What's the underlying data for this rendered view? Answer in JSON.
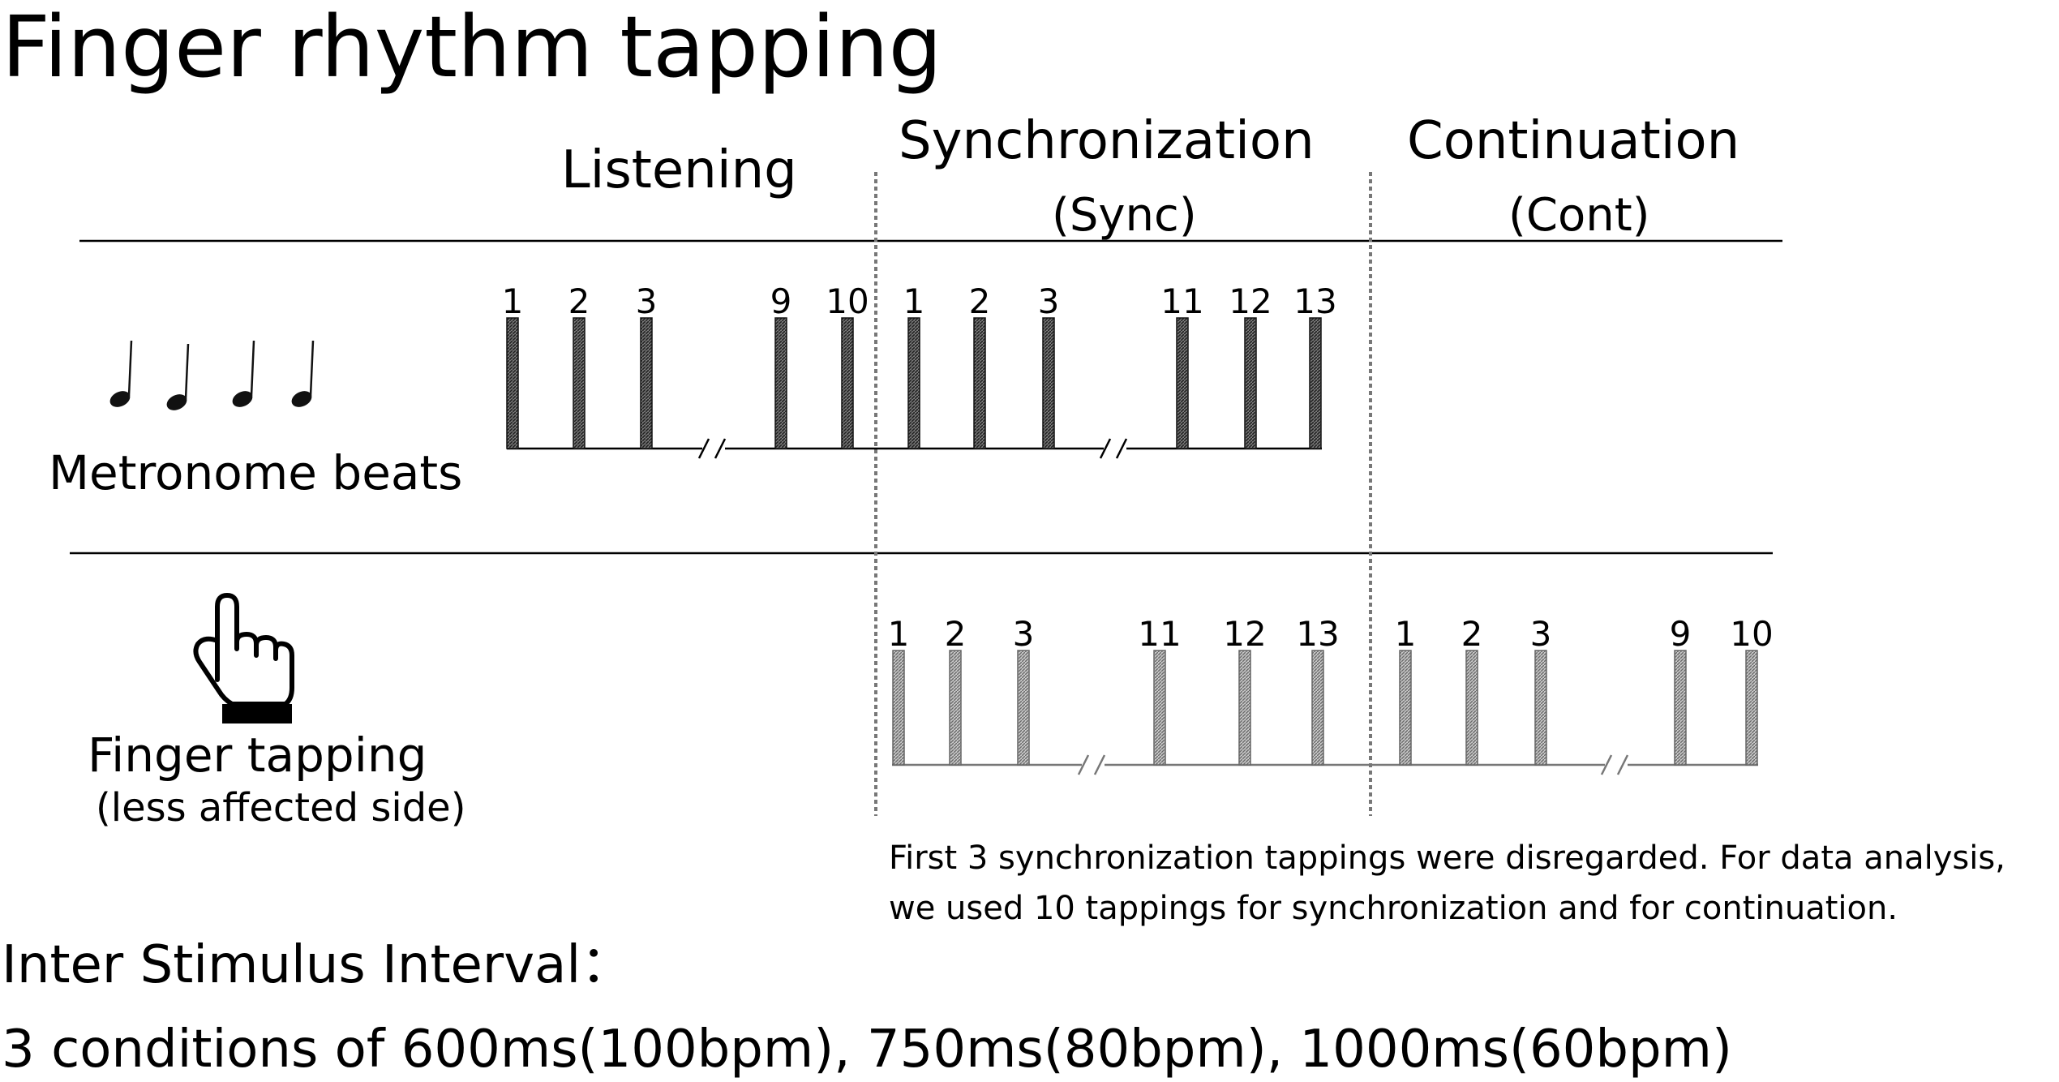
{
  "title": "Finger rhythm tapping",
  "phases": {
    "listening": "Listening",
    "sync": "Synchronization",
    "sync_abbr": "(Sync)",
    "cont": "Continuation",
    "cont_abbr": "(Cont)"
  },
  "rows": {
    "metronome": {
      "label": "Metronome beats",
      "icon": "music-notes-icon"
    },
    "tapping": {
      "label": "Finger tapping",
      "sublabel": "(less affected side)",
      "icon": "pointing-hand-icon"
    }
  },
  "metronome_beats": {
    "listening": [
      "1",
      "2",
      "3",
      "9",
      "10"
    ],
    "sync": [
      "1",
      "2",
      "3",
      "11",
      "12",
      "13"
    ]
  },
  "tapping_beats": {
    "sync": [
      "1",
      "2",
      "3",
      "11",
      "12",
      "13"
    ],
    "cont": [
      "1",
      "2",
      "3",
      "9",
      "10"
    ]
  },
  "note": [
    "First 3 synchronization tappings were disregarded. For data analysis,",
    "we used 10 tappings for synchronization and for continuation."
  ],
  "footer": [
    "Inter Stimulus Interval：",
    "3 conditions of 600ms(100bpm), 750ms(80bpm), 1000ms(60bpm)"
  ]
}
